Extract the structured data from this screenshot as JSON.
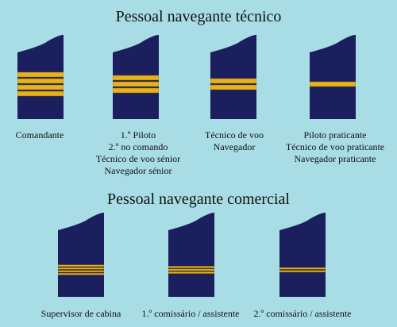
{
  "colors": {
    "background": "#a8dde6",
    "epaulette": "#1b1f5e",
    "stripe": "#e8b31a",
    "stripe_edge": "#7a5d10"
  },
  "technical": {
    "title": "Pessoal navegante técnico",
    "ranks": [
      {
        "stripes": 4,
        "lines": [
          "Comandante"
        ]
      },
      {
        "stripes": 3,
        "lines": [
          "1.º Piloto",
          "2.º no comando",
          "Técnico de voo sénior",
          "Navegador sénior"
        ]
      },
      {
        "stripes": 2,
        "lines": [
          "Técnico de voo",
          "Navegador"
        ]
      },
      {
        "stripes": 1,
        "lines": [
          "Piloto praticante",
          "Técnico de voo praticante",
          "Navegador praticante"
        ]
      }
    ]
  },
  "commercial": {
    "title": "Pessoal navegante comercial",
    "ranks": [
      {
        "stripes": 4,
        "lines": [
          "Supervisor de cabina"
        ]
      },
      {
        "stripes": 3,
        "lines": [
          "1.º comissário / assistente"
        ]
      },
      {
        "stripes": 2,
        "lines": [
          "2.º comissário / assistente"
        ]
      }
    ]
  }
}
